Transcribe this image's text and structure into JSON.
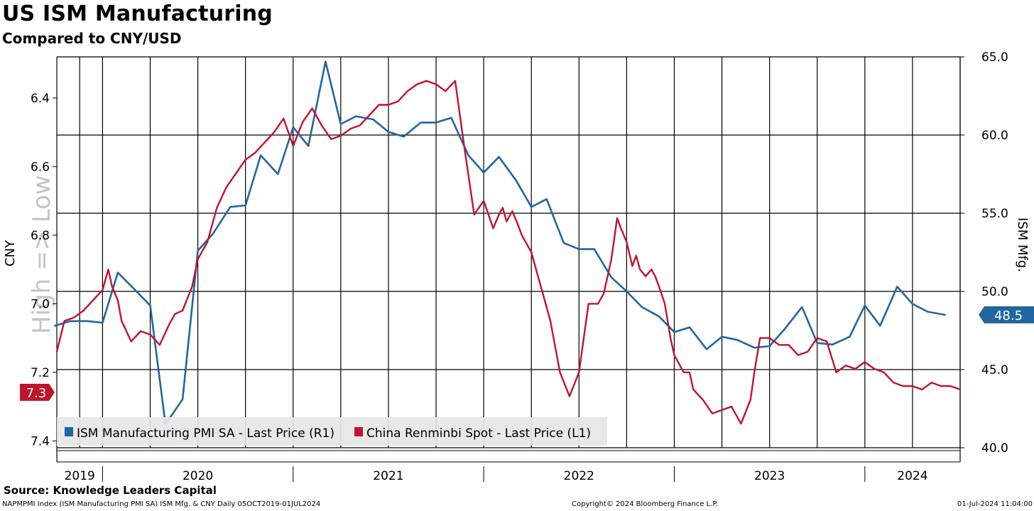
{
  "header": {
    "title": "US ISM Manufacturing",
    "subtitle": "Compared to CNY/USD"
  },
  "footer": {
    "source": "Source: Knowledge Leaders Capital",
    "left": "NAPMPMI Index (ISM Manufacturing PMI SA) ISM Mfg. & CNY  Daily 05OCT2019-01JUL2024",
    "center": "Copyright© 2024 Bloomberg Finance L.P.",
    "right": "01-Jul-2024 11:04:00"
  },
  "colors": {
    "ism": "#2166a0",
    "cny": "#c0142c",
    "axis": "#000000"
  },
  "chart_data": {
    "type": "line",
    "title": "US ISM Manufacturing",
    "subtitle": "Compared to CNY/USD",
    "watermark": "High => Low",
    "left_axis": {
      "label": "CNY",
      "inverted": true,
      "range": [
        7.42,
        6.28
      ],
      "ticks": [
        6.4,
        6.6,
        6.8,
        7.0,
        7.2,
        7.4
      ],
      "tick_labels": [
        "6.4",
        "6.6",
        "6.8",
        "7.0",
        "7.2",
        "7.4"
      ]
    },
    "right_axis": {
      "label": "ISM Mfg.",
      "range": [
        40,
        65
      ],
      "ticks": [
        40,
        45,
        50,
        55,
        60,
        65
      ],
      "tick_labels": [
        "40.0",
        "45.0",
        "50.0",
        "55.0",
        "60.0",
        "65.0"
      ]
    },
    "x_axis": {
      "range": [
        2019.76,
        2024.5
      ],
      "labels": [
        {
          "text": "2019",
          "at": 2019.88
        },
        {
          "text": "2020",
          "at": 2020.5
        },
        {
          "text": "2021",
          "at": 2021.5
        },
        {
          "text": "2022",
          "at": 2022.5
        },
        {
          "text": "2023",
          "at": 2023.5
        },
        {
          "text": "2024",
          "at": 2024.25
        }
      ],
      "year_boundaries": [
        2020.0,
        2021.0,
        2022.0,
        2023.0,
        2024.0
      ]
    },
    "last_values": {
      "ism": "48.5",
      "cny": "7.3"
    },
    "legend": [
      {
        "name": "ISM Manufacturing PMI SA - Last Price (R1)",
        "series": "ism"
      },
      {
        "name": "China Renminbi Spot - Last Price (L1)",
        "series": "cny"
      }
    ],
    "legend_position": "bottom-left",
    "series": [
      {
        "name": "ISM Manufacturing PMI SA",
        "key": "ism",
        "axis": "right",
        "x": [
          2019.75,
          2019.83,
          2019.92,
          2020.0,
          2020.08,
          2020.17,
          2020.25,
          2020.33,
          2020.42,
          2020.5,
          2020.58,
          2020.67,
          2020.75,
          2020.83,
          2020.92,
          2021.0,
          2021.08,
          2021.17,
          2021.25,
          2021.33,
          2021.42,
          2021.5,
          2021.58,
          2021.67,
          2021.75,
          2021.83,
          2021.92,
          2022.0,
          2022.08,
          2022.17,
          2022.25,
          2022.33,
          2022.42,
          2022.5,
          2022.58,
          2022.67,
          2022.75,
          2022.83,
          2022.92,
          2023.0,
          2023.08,
          2023.17,
          2023.25,
          2023.33,
          2023.42,
          2023.5,
          2023.58,
          2023.67,
          2023.75,
          2023.83,
          2023.92,
          2024.0,
          2024.08,
          2024.17,
          2024.25,
          2024.33,
          2024.42
        ],
        "values": [
          47.8,
          48.1,
          48.1,
          48.0,
          51.2,
          50.1,
          49.1,
          41.5,
          43.1,
          52.6,
          53.7,
          55.4,
          55.5,
          58.7,
          57.5,
          60.5,
          59.3,
          64.7,
          60.7,
          61.2,
          61.0,
          60.2,
          59.9,
          60.8,
          60.8,
          61.1,
          58.7,
          57.6,
          58.6,
          57.1,
          55.4,
          55.9,
          53.1,
          52.7,
          52.7,
          50.9,
          50.0,
          49.0,
          48.4,
          47.4,
          47.7,
          46.3,
          47.1,
          46.9,
          46.4,
          46.5,
          47.6,
          49.0,
          46.7,
          46.6,
          47.1,
          49.1,
          47.8,
          50.3,
          49.2,
          48.7,
          48.5
        ]
      },
      {
        "name": "China Renminbi Spot",
        "key": "cny",
        "axis": "left",
        "x": [
          2019.76,
          2019.8,
          2019.85,
          2019.9,
          2019.95,
          2020.0,
          2020.03,
          2020.05,
          2020.08,
          2020.1,
          2020.15,
          2020.2,
          2020.25,
          2020.3,
          2020.35,
          2020.38,
          2020.42,
          2020.47,
          2020.5,
          2020.55,
          2020.6,
          2020.65,
          2020.7,
          2020.75,
          2020.8,
          2020.85,
          2020.9,
          2020.95,
          2021.0,
          2021.05,
          2021.1,
          2021.15,
          2021.2,
          2021.25,
          2021.3,
          2021.35,
          2021.4,
          2021.45,
          2021.5,
          2021.55,
          2021.6,
          2021.65,
          2021.7,
          2021.75,
          2021.8,
          2021.85,
          2021.9,
          2021.95,
          2022.0,
          2022.05,
          2022.08,
          2022.1,
          2022.12,
          2022.15,
          2022.18,
          2022.2,
          2022.25,
          2022.3,
          2022.35,
          2022.4,
          2022.45,
          2022.5,
          2022.55,
          2022.6,
          2022.63,
          2022.67,
          2022.7,
          2022.72,
          2022.75,
          2022.78,
          2022.8,
          2022.82,
          2022.85,
          2022.88,
          2022.9,
          2022.92,
          2022.95,
          2022.98,
          2023.0,
          2023.02,
          2023.05,
          2023.08,
          2023.1,
          2023.15,
          2023.2,
          2023.25,
          2023.3,
          2023.35,
          2023.4,
          2023.42,
          2023.45,
          2023.5,
          2023.55,
          2023.6,
          2023.65,
          2023.7,
          2023.75,
          2023.8,
          2023.85,
          2023.9,
          2023.95,
          2024.0,
          2024.05,
          2024.1,
          2024.15,
          2024.2,
          2024.25,
          2024.3,
          2024.35,
          2024.4,
          2024.45,
          2024.5
        ],
        "values": [
          7.14,
          7.05,
          7.04,
          7.02,
          6.99,
          6.96,
          6.9,
          6.95,
          6.99,
          7.05,
          7.11,
          7.08,
          7.09,
          7.12,
          7.06,
          7.03,
          7.02,
          6.95,
          6.87,
          6.82,
          6.72,
          6.66,
          6.62,
          6.58,
          6.56,
          6.53,
          6.5,
          6.46,
          6.54,
          6.47,
          6.43,
          6.48,
          6.52,
          6.51,
          6.49,
          6.48,
          6.45,
          6.42,
          6.42,
          6.41,
          6.38,
          6.36,
          6.35,
          6.36,
          6.38,
          6.35,
          6.55,
          6.74,
          6.7,
          6.78,
          6.74,
          6.72,
          6.76,
          6.73,
          6.77,
          6.8,
          6.85,
          6.95,
          7.05,
          7.2,
          7.27,
          7.2,
          7.0,
          7.0,
          6.97,
          6.87,
          6.75,
          6.78,
          6.82,
          6.89,
          6.86,
          6.9,
          6.92,
          6.9,
          6.92,
          6.95,
          7.0,
          7.1,
          7.15,
          7.17,
          7.2,
          7.2,
          7.25,
          7.28,
          7.32,
          7.31,
          7.3,
          7.35,
          7.28,
          7.2,
          7.1,
          7.1,
          7.12,
          7.12,
          7.15,
          7.14,
          7.1,
          7.11,
          7.2,
          7.18,
          7.19,
          7.17,
          7.19,
          7.2,
          7.23,
          7.24,
          7.24,
          7.25,
          7.23,
          7.24,
          7.24,
          7.25
        ]
      }
    ]
  }
}
